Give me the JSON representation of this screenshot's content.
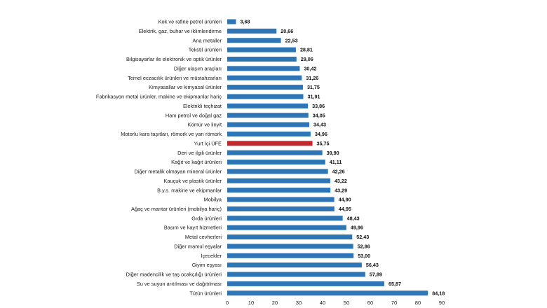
{
  "chart_data": {
    "type": "bar",
    "orientation": "horizontal",
    "title": "",
    "xlabel": "",
    "ylabel": "",
    "xlim": [
      0,
      90
    ],
    "x_ticks": [
      0,
      10,
      20,
      30,
      40,
      50,
      60,
      70,
      80,
      90
    ],
    "grid": false,
    "legend": "none",
    "categories": [
      "Kok ve rafine petrol ürünleri",
      "Elektrik, gaz, buhar ve iklimlendirme",
      "Ana metaller",
      "Tekstil ürünleri",
      "Bilgisayarlar ile elektronik ve optik ürünler",
      "Diğer ulaşım araçları",
      "Temel eczacılık ürünleri ve müstahzarları",
      "Kimyasallar ve kimyasal ürünler",
      "Fabrikasyon metal ürünler, makine ve ekipmanlar hariç",
      "Elektrikli teçhizat",
      "Ham petrol ve doğal gaz",
      "Kömür ve linyit",
      "Motorlu kara taşıtları, römork ve yarı römork",
      "Yurt İçi ÜFE",
      "Deri ve ilgili ürünler",
      "Kağıt ve kağıt ürünleri",
      "Diğer metalik olmayan mineral ürünler",
      "Kauçuk ve plastik ürünler",
      "B.y.s. makine ve ekipmanlar",
      "Mobilya",
      "Ağaç ve mantar ürünleri (mobilya hariç)",
      "Gıda ürünleri",
      "Basım ve kayıt hizmetleri",
      "Metal cevherleri",
      "Diğer mamul eşyalar",
      "İçecekler",
      "Giyim eşyası",
      "Diğer madencilik ve taş ocakçılığı ürünleri",
      "Su ve suyun arıtılması ve dağıtılması",
      "Tütün ürünleri"
    ],
    "values": [
      3.68,
      20.66,
      22.53,
      28.81,
      29.06,
      30.42,
      31.26,
      31.75,
      31.91,
      33.86,
      34.05,
      34.43,
      34.96,
      35.75,
      39.9,
      41.11,
      42.26,
      43.22,
      43.29,
      44.9,
      44.95,
      48.43,
      49.96,
      52.43,
      52.86,
      53.0,
      56.43,
      57.89,
      65.87,
      84.18
    ],
    "value_labels": [
      "3,68",
      "20,66",
      "22,53",
      "28,81",
      "29,06",
      "30,42",
      "31,26",
      "31,75",
      "31,91",
      "33,86",
      "34,05",
      "34,43",
      "34,96",
      "35,75",
      "39,90",
      "41,11",
      "42,26",
      "43,22",
      "43,29",
      "44,90",
      "44,95",
      "48,43",
      "49,96",
      "52,43",
      "52,86",
      "53,00",
      "56,43",
      "57,89",
      "65,87",
      "84,18"
    ],
    "highlight_index": 13,
    "bar_color": "#2e75b6",
    "highlight_color": "#c0282d"
  }
}
